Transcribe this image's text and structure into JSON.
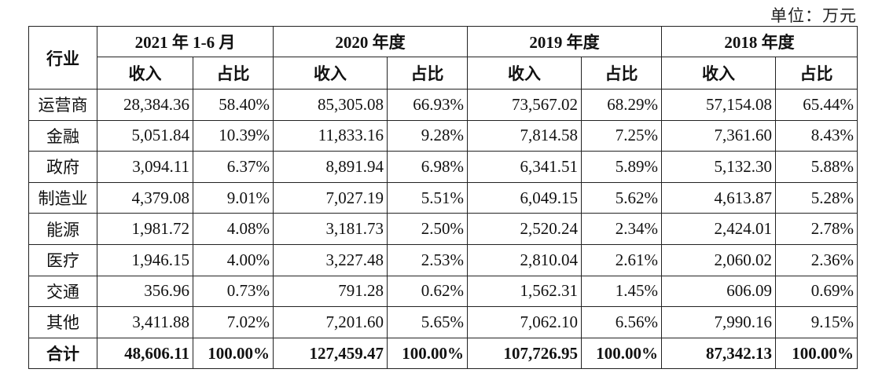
{
  "unit_label": "单位：万元",
  "header": {
    "industry": "行业",
    "periods": [
      "2021 年 1-6 月",
      "2020 年度",
      "2019 年度",
      "2018 年度"
    ],
    "revenue": "收入",
    "share": "占比"
  },
  "rows": [
    {
      "industry": "运营商",
      "v": [
        "28,384.36",
        "58.40%",
        "85,305.08",
        "66.93%",
        "73,567.02",
        "68.29%",
        "57,154.08",
        "65.44%"
      ]
    },
    {
      "industry": "金融",
      "v": [
        "5,051.84",
        "10.39%",
        "11,833.16",
        "9.28%",
        "7,814.58",
        "7.25%",
        "7,361.60",
        "8.43%"
      ]
    },
    {
      "industry": "政府",
      "v": [
        "3,094.11",
        "6.37%",
        "8,891.94",
        "6.98%",
        "6,341.51",
        "5.89%",
        "5,132.30",
        "5.88%"
      ]
    },
    {
      "industry": "制造业",
      "v": [
        "4,379.08",
        "9.01%",
        "7,027.19",
        "5.51%",
        "6,049.15",
        "5.62%",
        "4,613.87",
        "5.28%"
      ]
    },
    {
      "industry": "能源",
      "v": [
        "1,981.72",
        "4.08%",
        "3,181.73",
        "2.50%",
        "2,520.24",
        "2.34%",
        "2,424.01",
        "2.78%"
      ]
    },
    {
      "industry": "医疗",
      "v": [
        "1,946.15",
        "4.00%",
        "3,227.48",
        "2.53%",
        "2,810.04",
        "2.61%",
        "2,060.02",
        "2.36%"
      ]
    },
    {
      "industry": "交通",
      "v": [
        "356.96",
        "0.73%",
        "791.28",
        "0.62%",
        "1,562.31",
        "1.45%",
        "606.09",
        "0.69%"
      ]
    },
    {
      "industry": "其他",
      "v": [
        "3,411.88",
        "7.02%",
        "7,201.60",
        "5.65%",
        "7,062.10",
        "6.56%",
        "7,990.16",
        "9.15%"
      ]
    }
  ],
  "total": {
    "industry": "合计",
    "v": [
      "48,606.11",
      "100.00%",
      "127,459.47",
      "100.00%",
      "107,726.95",
      "100.00%",
      "87,342.13",
      "100.00%"
    ]
  }
}
